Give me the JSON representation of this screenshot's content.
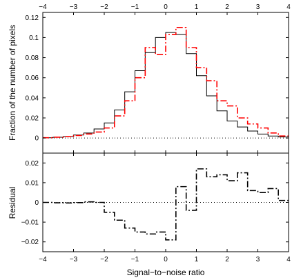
{
  "chart_data": [
    {
      "type": "line",
      "subtype": "step",
      "panel": "top",
      "xlabel": "",
      "ylabel": "Fraction of the number of pixels",
      "xlim": [
        -4,
        4
      ],
      "ylim": [
        -0.015,
        0.125
      ],
      "x_ticks": [
        -4,
        -3,
        -2,
        -1,
        0,
        1,
        2,
        3,
        4
      ],
      "x_tick_labels": [
        "−4",
        "−3",
        "−2",
        "−1",
        "0",
        "1",
        "2",
        "3",
        "4"
      ],
      "y_ticks": [
        0,
        0.02,
        0.04,
        0.06,
        0.08,
        0.1,
        0.12
      ],
      "y_tick_labels": [
        "0",
        "0.02",
        "0.04",
        "0.06",
        "0.08",
        "0.1",
        "0.12"
      ],
      "reference_line": {
        "y": 0,
        "style": "dotted"
      },
      "bin_edges": [
        -4.0,
        -3.667,
        -3.333,
        -3.0,
        -2.667,
        -2.333,
        -2.0,
        -1.667,
        -1.333,
        -1.0,
        -0.667,
        -0.333,
        0.0,
        0.333,
        0.667,
        1.0,
        1.333,
        1.667,
        2.0,
        2.333,
        2.667,
        3.0,
        3.333,
        3.667,
        4.0
      ],
      "series": [
        {
          "color": "#000000",
          "linestyle": "solid",
          "values": [
            0.0003,
            0.0008,
            0.0015,
            0.003,
            0.005,
            0.009,
            0.015,
            0.028,
            0.046,
            0.067,
            0.085,
            0.1,
            0.105,
            0.103,
            0.084,
            0.062,
            0.042,
            0.027,
            0.017,
            0.011,
            0.007,
            0.004,
            0.002,
            0.001
          ]
        },
        {
          "color": "#ff0000",
          "linestyle": "dashdot",
          "values": [
            0.0003,
            0.0008,
            0.0014,
            0.0025,
            0.004,
            0.006,
            0.01,
            0.022,
            0.037,
            0.06,
            0.09,
            0.083,
            0.103,
            0.11,
            0.09,
            0.07,
            0.057,
            0.037,
            0.032,
            0.02,
            0.014,
            0.01,
            0.005,
            0.002
          ]
        }
      ]
    },
    {
      "type": "line",
      "subtype": "step",
      "panel": "bottom",
      "xlabel": "Signal−to−noise ratio",
      "ylabel": "Residual",
      "xlim": [
        -4,
        4
      ],
      "ylim": [
        -0.025,
        0.025
      ],
      "x_ticks": [
        -4,
        -3,
        -2,
        -1,
        0,
        1,
        2,
        3,
        4
      ],
      "x_tick_labels": [
        "−4",
        "−3",
        "−2",
        "−1",
        "0",
        "1",
        "2",
        "3",
        "4"
      ],
      "y_ticks": [
        -0.02,
        -0.01,
        0,
        0.01,
        0.02
      ],
      "y_tick_labels": [
        "−0.02",
        "−0.01",
        "0",
        "0.01",
        "0.02"
      ],
      "reference_line": {
        "y": 0,
        "style": "dotted"
      },
      "bin_edges": [
        -4.0,
        -3.667,
        -3.333,
        -3.0,
        -2.667,
        -2.333,
        -2.0,
        -1.667,
        -1.333,
        -1.0,
        -0.667,
        -0.333,
        0.0,
        0.333,
        0.667,
        1.0,
        1.333,
        1.667,
        2.0,
        2.333,
        2.667,
        3.0,
        3.333,
        3.667,
        4.0
      ],
      "series": [
        {
          "color": "#000000",
          "linestyle": "dashdot",
          "values": [
            0,
            -0.0002,
            -0.0003,
            -0.0001,
            0.0003,
            0,
            -0.005,
            -0.009,
            -0.013,
            -0.015,
            -0.016,
            -0.015,
            -0.019,
            0.008,
            -0.004,
            0.017,
            0.013,
            0.014,
            0.011,
            0.015,
            0.006,
            0.005,
            0.007,
            0.001
          ]
        }
      ]
    }
  ]
}
